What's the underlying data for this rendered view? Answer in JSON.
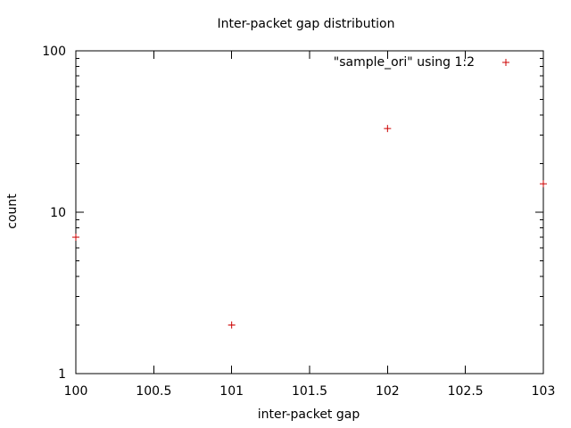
{
  "chart_data": {
    "type": "scatter",
    "title": "Inter-packet gap distribution",
    "xlabel": "inter-packet gap",
    "ylabel": "count",
    "xlim": [
      100,
      103
    ],
    "ylim": [
      1,
      100
    ],
    "y_scale": "log",
    "grid": false,
    "legend_position": "top-right",
    "x_ticks": [
      100,
      100.5,
      101,
      101.5,
      102,
      102.5,
      103
    ],
    "x_tick_labels": [
      "100",
      "100.5",
      "101",
      "101.5",
      "102",
      "102.5",
      "103"
    ],
    "y_ticks": [
      1,
      10,
      100
    ],
    "y_tick_labels": [
      "1",
      "10",
      "100"
    ],
    "series": [
      {
        "name": "\"sample_ori\" using 1:2",
        "color": "#cc0000",
        "marker": "plus",
        "points": [
          {
            "x": 100,
            "y": 7
          },
          {
            "x": 101,
            "y": 2
          },
          {
            "x": 102,
            "y": 33
          },
          {
            "x": 103,
            "y": 15
          }
        ]
      }
    ]
  }
}
